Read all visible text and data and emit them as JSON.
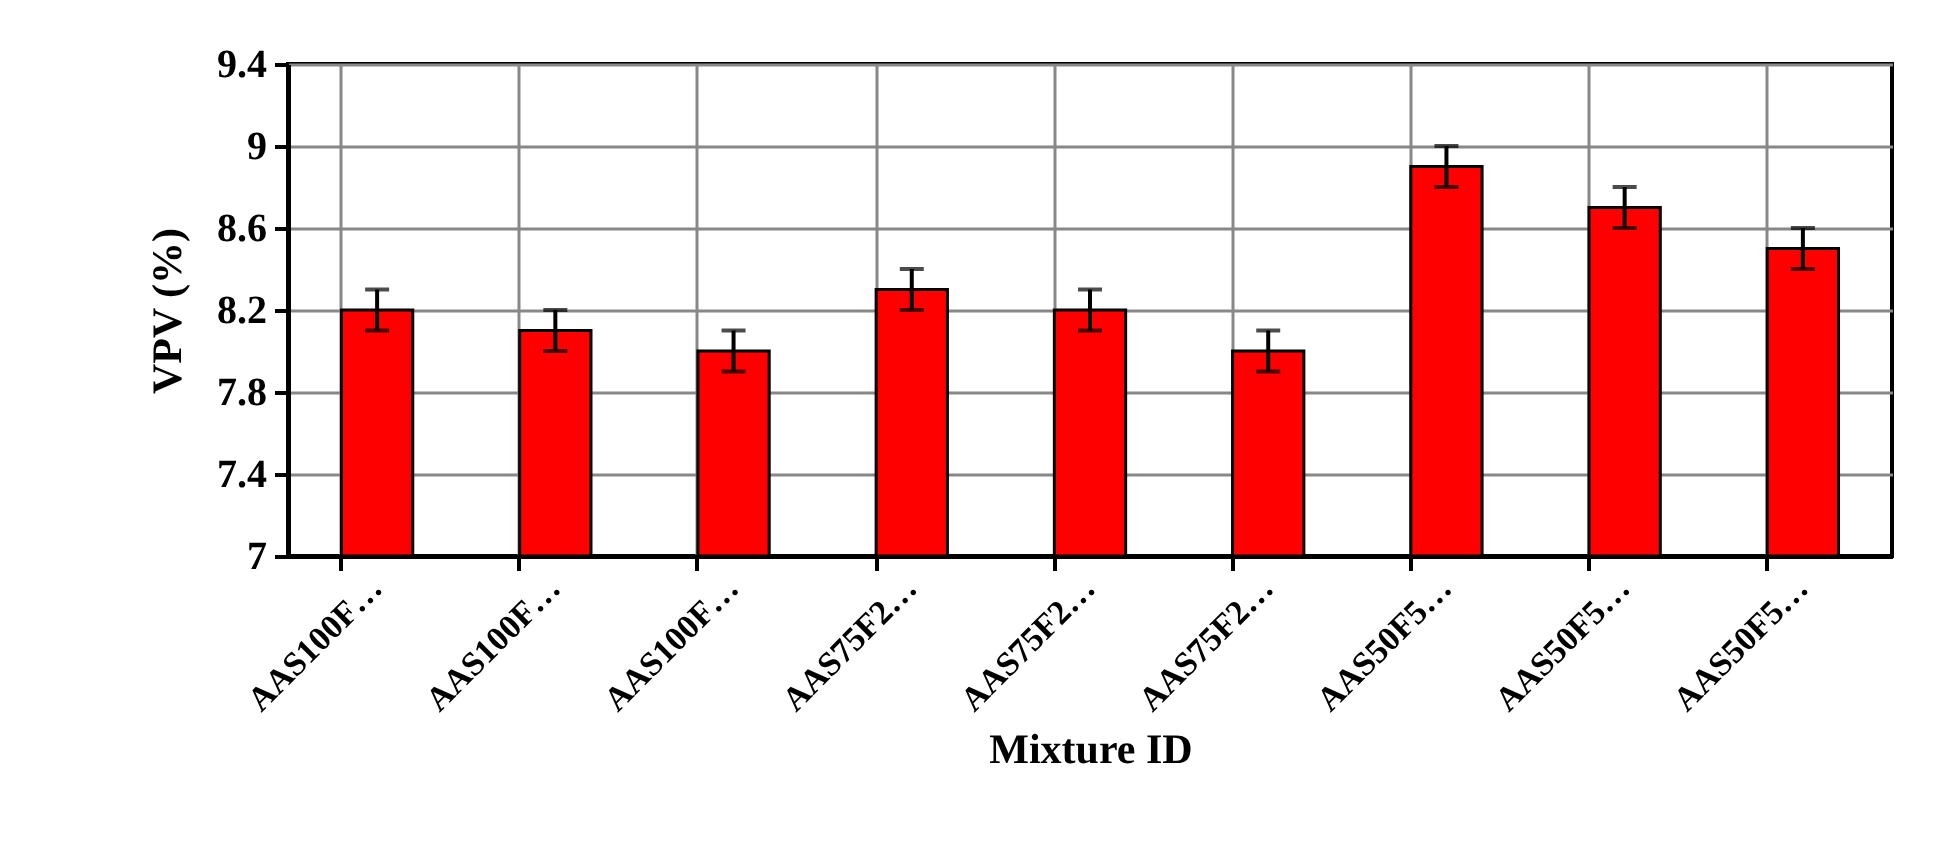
{
  "chart_data": {
    "type": "bar",
    "xlabel": "Mixture ID",
    "ylabel": "VPV (%)",
    "categories": [
      "AAS100F…",
      "AAS100F…",
      "AAS100F…",
      "AAS75F2…",
      "AAS75F2…",
      "AAS75F2…",
      "AAS50F5…",
      "AAS50F5…",
      "AAS50F5…"
    ],
    "values": [
      8.2,
      8.1,
      8.0,
      8.3,
      8.2,
      8.0,
      8.9,
      8.7,
      8.5
    ],
    "errors": [
      0.1,
      0.1,
      0.1,
      0.1,
      0.1,
      0.1,
      0.1,
      0.1,
      0.1
    ],
    "color": "#ff0000",
    "ylim": [
      7,
      9.4
    ],
    "yticks": [
      7,
      7.4,
      7.8,
      8.2,
      8.6,
      9,
      9.4
    ],
    "grid": true
  }
}
